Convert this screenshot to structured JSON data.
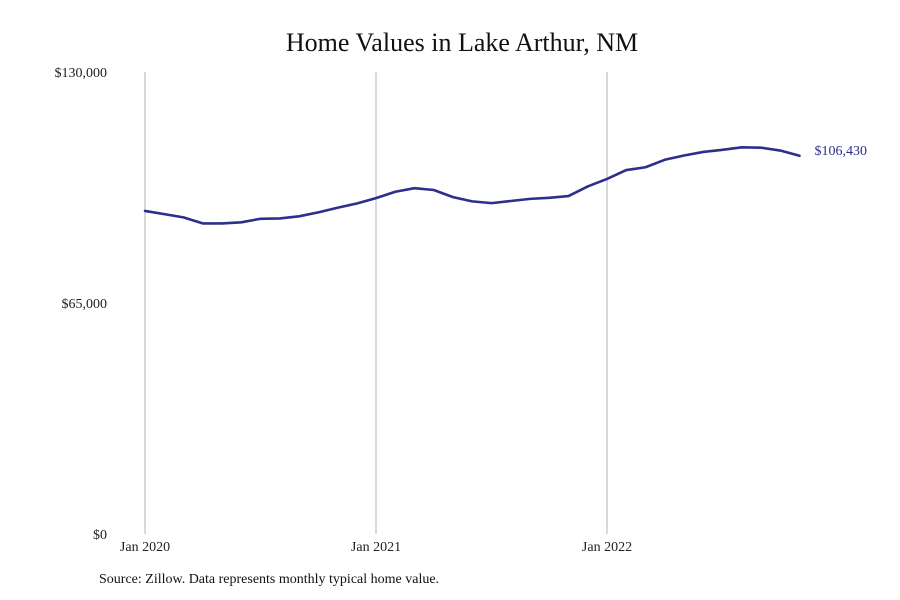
{
  "chart_data": {
    "type": "line",
    "title": "Home Values in Lake Arthur, NM",
    "xlabel": "",
    "ylabel": "",
    "ylim": [
      0,
      130000
    ],
    "y_ticks": [
      {
        "value": 0,
        "label": "$0"
      },
      {
        "value": 65000,
        "label": "$65,000"
      },
      {
        "value": 130000,
        "label": "$130,000"
      }
    ],
    "x_ticks": [
      {
        "month_index": 0,
        "label": "Jan 2020"
      },
      {
        "month_index": 12,
        "label": "Jan 2021"
      },
      {
        "month_index": 24,
        "label": "Jan 2022"
      }
    ],
    "grid": {
      "vertical": true,
      "horizontal": false
    },
    "legend": "none",
    "series": [
      {
        "color": "#2e2e8c",
        "end_label": "$106,430",
        "x": [
          "2020-01",
          "2020-02",
          "2020-03",
          "2020-04",
          "2020-05",
          "2020-06",
          "2020-07",
          "2020-08",
          "2020-09",
          "2020-10",
          "2020-11",
          "2020-12",
          "2021-01",
          "2021-02",
          "2021-03",
          "2021-04",
          "2021-05",
          "2021-06",
          "2021-07",
          "2021-08",
          "2021-09",
          "2021-10",
          "2021-11",
          "2021-12",
          "2022-01",
          "2022-02",
          "2022-03",
          "2022-04",
          "2022-05",
          "2022-06",
          "2022-07",
          "2022-08",
          "2022-09",
          "2022-10",
          "2022-11"
        ],
        "values": [
          90900,
          90000,
          89100,
          87400,
          87400,
          87700,
          88700,
          88800,
          89400,
          90500,
          91800,
          93000,
          94500,
          96300,
          97300,
          96800,
          94800,
          93600,
          93100,
          93700,
          94300,
          94600,
          95100,
          97800,
          99900,
          102400,
          103200,
          105300,
          106500,
          107500,
          108100,
          108800,
          108700,
          107900,
          106430
        ]
      }
    ]
  },
  "source": "Source: Zillow. Data represents monthly typical home value."
}
